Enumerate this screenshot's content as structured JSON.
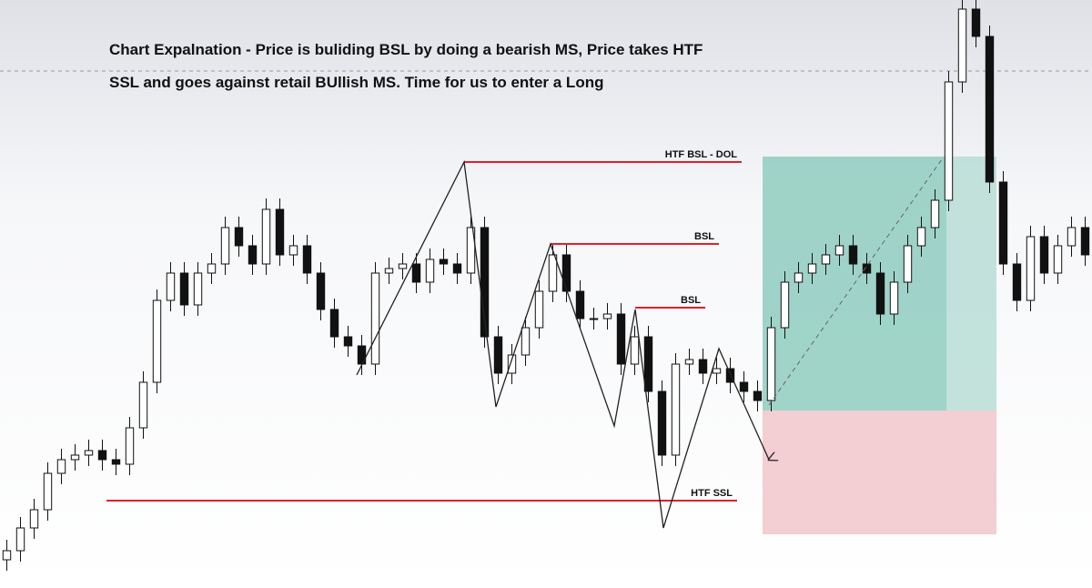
{
  "chart_data": {
    "type": "candlestick",
    "annotation_lines": [
      "Chart Expalnation - Price is buliding BSL by doing a bearish MS, Price takes HTF",
      "SSL and goes against retail BUllish MS.  Time for us to enter a Long"
    ],
    "level_labels": [
      "HTF BSL - DOL",
      "BSL",
      "BSL",
      "HTF SSL"
    ],
    "ylim": [
      0,
      646
    ],
    "open": [
      31,
      41,
      66,
      86,
      126,
      141,
      146,
      151,
      141,
      136,
      176,
      226,
      316,
      346,
      311,
      346,
      356,
      396,
      376,
      356,
      416,
      366,
      376,
      346,
      306,
      276,
      266,
      246,
      346,
      351,
      356,
      336,
      361,
      356,
      346,
      396,
      276,
      236,
      256,
      286,
      326,
      366,
      326,
      296,
      296,
      301,
      246,
      276,
      216,
      146,
      246,
      251,
      236,
      241,
      226,
      216,
      206,
      286,
      336,
      346,
      356,
      366,
      376,
      356,
      346,
      301,
      336,
      376,
      396,
      426,
      556,
      636,
      606,
      446,
      356,
      316,
      386,
      346,
      376,
      396
    ],
    "high": [
      53,
      78,
      98,
      138,
      153,
      158,
      163,
      163,
      153,
      188,
      238,
      328,
      358,
      358,
      358,
      368,
      408,
      408,
      388,
      428,
      428,
      388,
      388,
      358,
      318,
      288,
      278,
      358,
      363,
      368,
      368,
      373,
      373,
      368,
      408,
      408,
      288,
      268,
      298,
      338,
      378,
      378,
      338,
      308,
      313,
      313,
      288,
      288,
      228,
      258,
      263,
      263,
      253,
      253,
      238,
      228,
      298,
      348,
      358,
      368,
      378,
      388,
      388,
      368,
      358,
      348,
      388,
      408,
      438,
      568,
      646,
      646,
      618,
      458,
      368,
      398,
      398,
      388,
      408,
      408
    ],
    "low": [
      19,
      29,
      54,
      74,
      114,
      129,
      134,
      129,
      124,
      124,
      164,
      214,
      304,
      299,
      299,
      334,
      344,
      364,
      344,
      344,
      354,
      354,
      334,
      294,
      264,
      254,
      234,
      234,
      334,
      339,
      324,
      324,
      344,
      334,
      334,
      264,
      224,
      224,
      244,
      274,
      314,
      314,
      284,
      284,
      284,
      234,
      234,
      204,
      134,
      134,
      234,
      224,
      224,
      214,
      204,
      194,
      194,
      274,
      324,
      334,
      344,
      354,
      344,
      334,
      289,
      289,
      324,
      364,
      384,
      414,
      544,
      594,
      434,
      344,
      304,
      304,
      334,
      334,
      364,
      354
    ],
    "close": [
      41,
      66,
      86,
      126,
      141,
      146,
      151,
      141,
      136,
      176,
      226,
      316,
      346,
      311,
      346,
      356,
      396,
      376,
      356,
      416,
      366,
      376,
      346,
      306,
      276,
      266,
      246,
      346,
      351,
      356,
      336,
      361,
      356,
      346,
      396,
      276,
      236,
      256,
      286,
      326,
      366,
      326,
      296,
      296,
      301,
      246,
      276,
      216,
      146,
      246,
      251,
      236,
      241,
      226,
      216,
      206,
      286,
      336,
      346,
      356,
      366,
      376,
      356,
      346,
      301,
      336,
      376,
      396,
      426,
      556,
      636,
      606,
      446,
      356,
      316,
      386,
      346,
      376,
      396,
      366
    ]
  }
}
